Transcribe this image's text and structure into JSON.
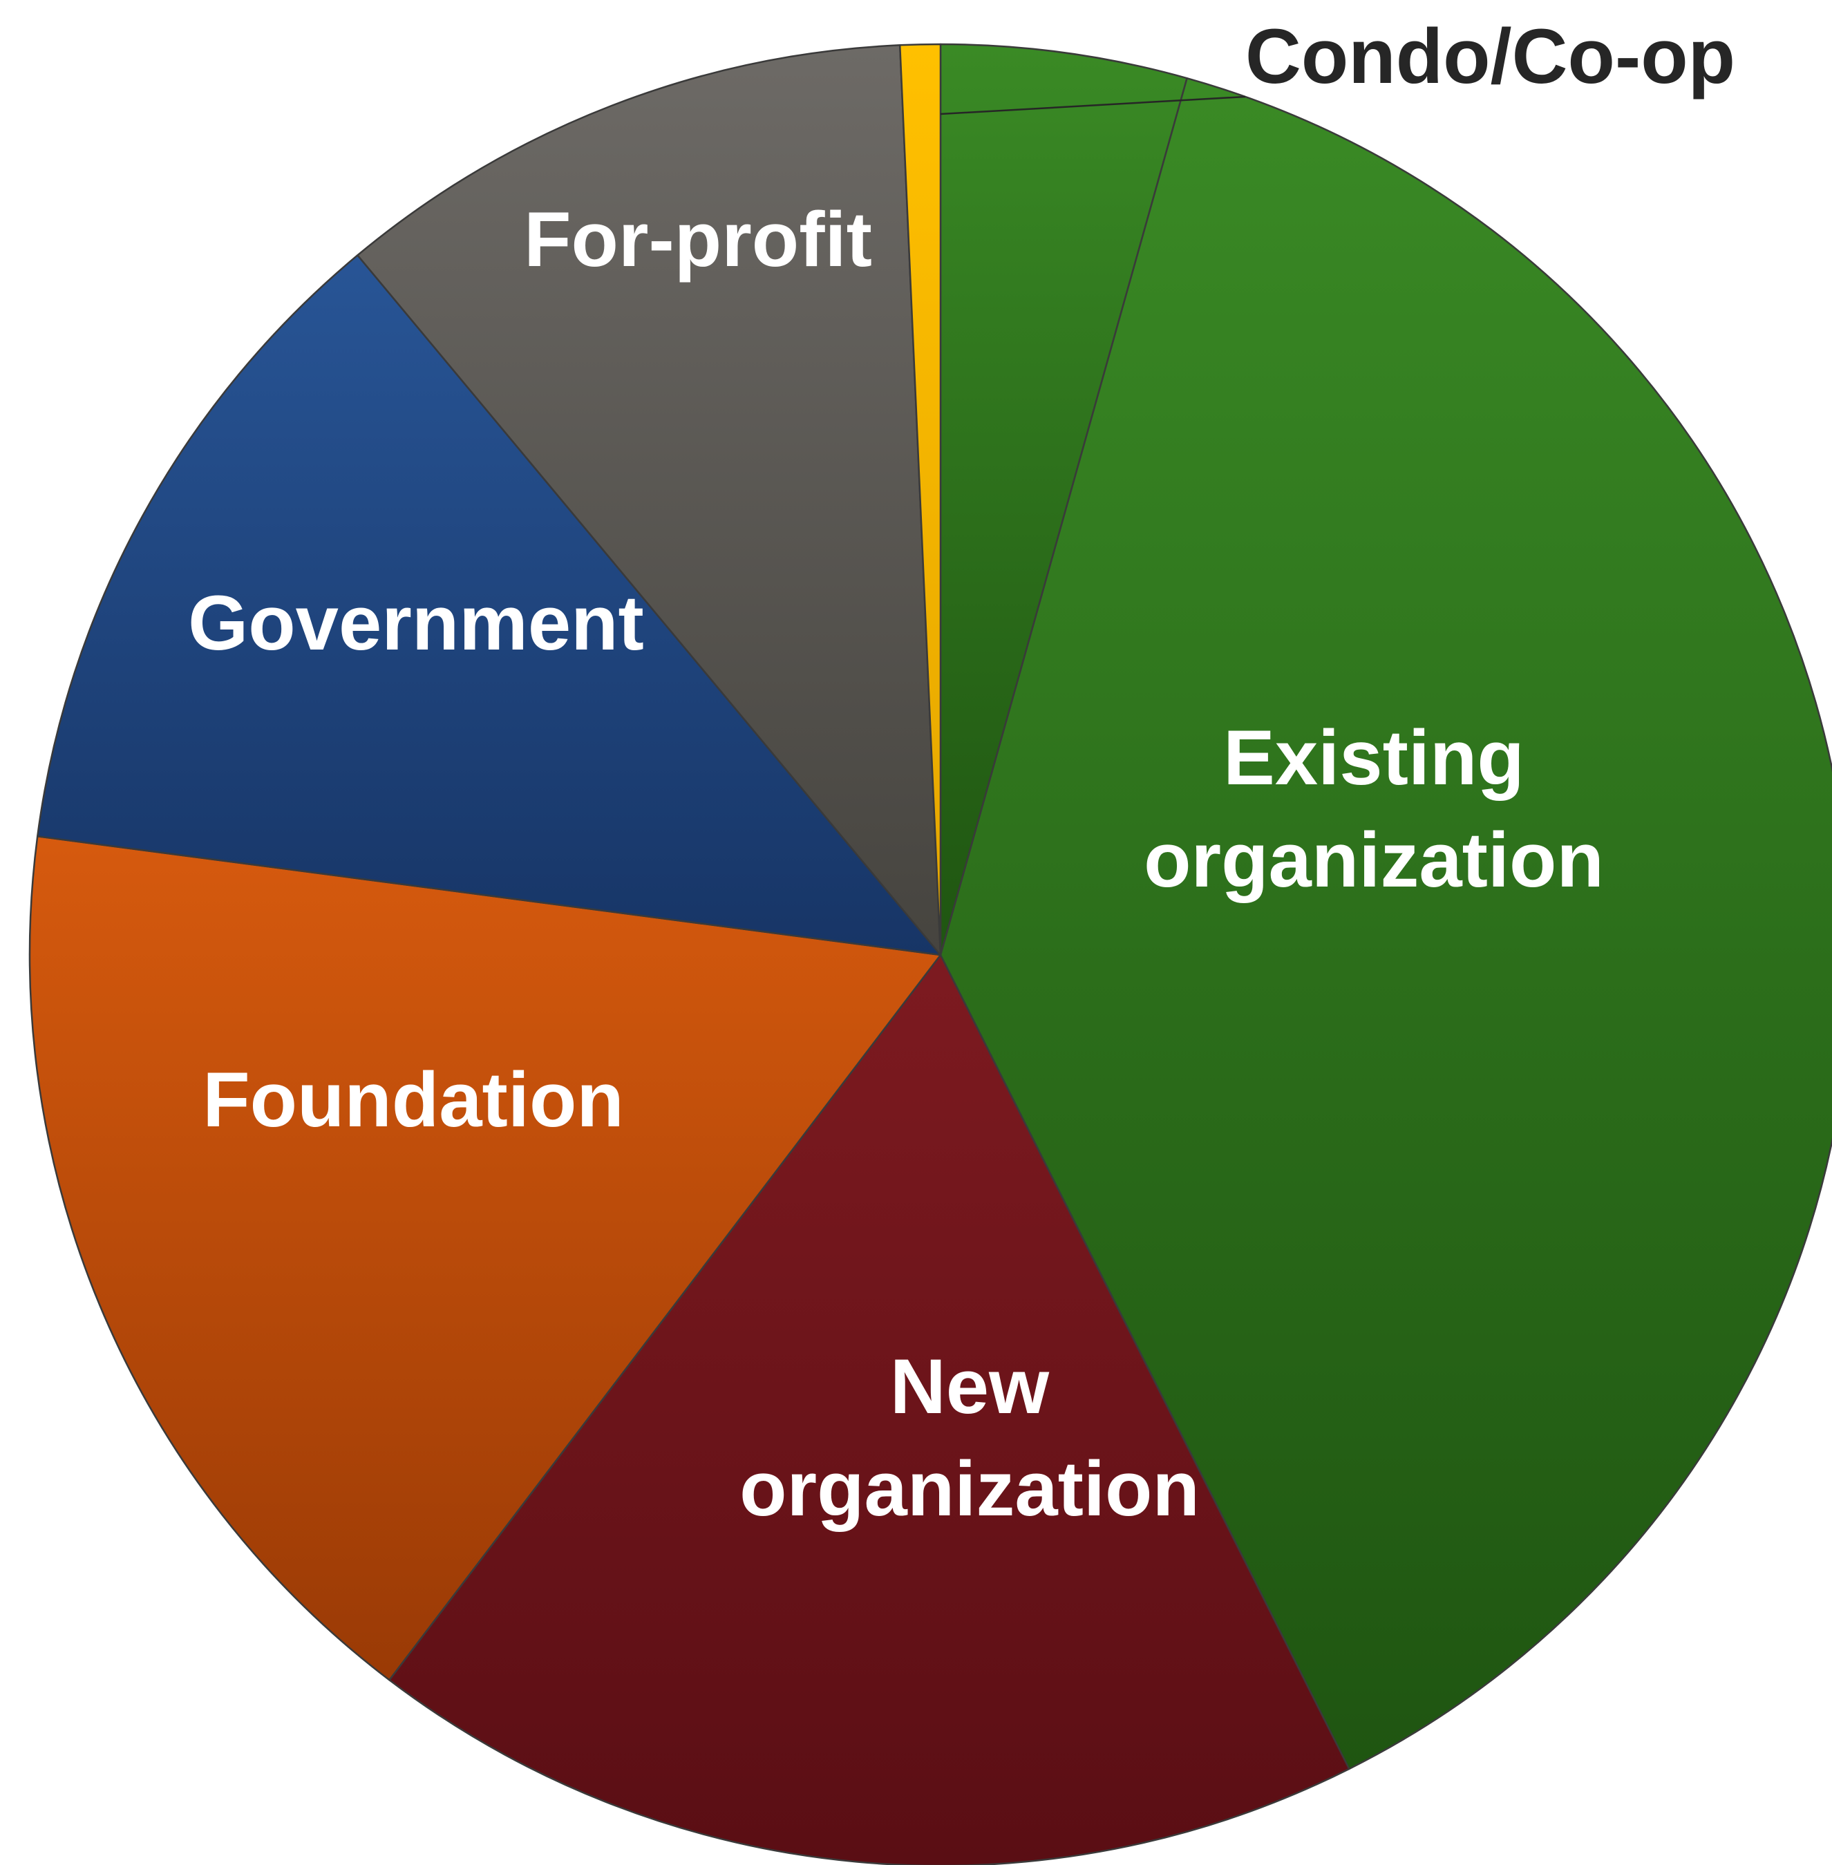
{
  "chart_data": {
    "type": "pie",
    "title": "",
    "start_angle_deg": 0,
    "direction": "clockwise",
    "legend": "none",
    "slices": [
      {
        "label": "Condo/Co-op",
        "value": 4.3,
        "color": "#3a8a25",
        "color_dark": "#1f5511",
        "label_position": "outside"
      },
      {
        "label": "Existing organization",
        "value": 37.7,
        "color": "#3a8a25",
        "color_dark": "#1f5511",
        "label_position": "inside"
      },
      {
        "label": "New organization",
        "value": 17.5,
        "color": "#7d1a20",
        "color_dark": "#5a0e14",
        "label_position": "inside"
      },
      {
        "label": "Foundation",
        "value": 16.5,
        "color": "#d65a0e",
        "color_dark": "#9a3a05",
        "label_position": "inside"
      },
      {
        "label": "Government",
        "value": 11.7,
        "color": "#285596",
        "color_dark": "#173566",
        "label_position": "inside"
      },
      {
        "label": "For-profit",
        "value": 10.2,
        "color": "#6d6a66",
        "color_dark": "#46443f",
        "label_position": "inside"
      },
      {
        "label": "",
        "value": 0.7,
        "color": "#ffc000",
        "color_dark": "#e5a600",
        "label_position": "none"
      }
    ]
  }
}
